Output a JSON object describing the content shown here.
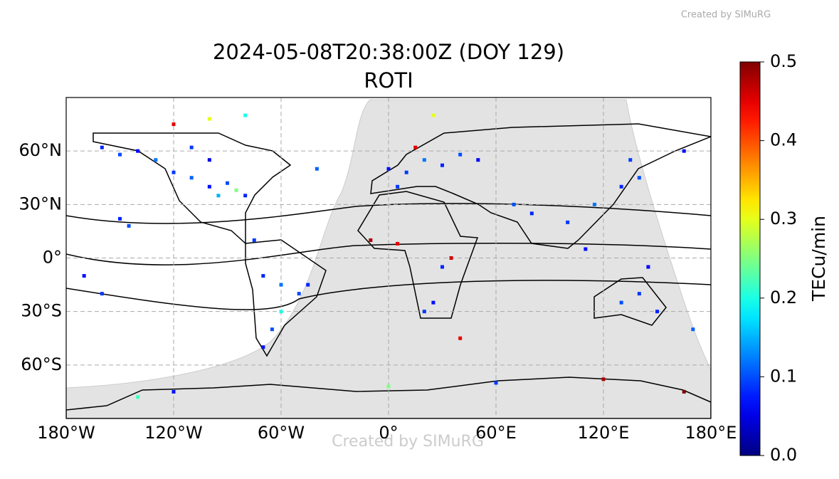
{
  "chart_data": {
    "type": "map",
    "title": "2024-05-08T20:38:00Z (DOY 129)",
    "subtitle": "ROTI",
    "watermark_top": "Created by SIMuRG",
    "watermark_center": "Created by SIMuRG",
    "xlim": [
      -180,
      180
    ],
    "ylim": [
      -90,
      90
    ],
    "xticks": [
      {
        "value": -180,
        "label": "180°W"
      },
      {
        "value": -120,
        "label": "120°W"
      },
      {
        "value": -60,
        "label": "60°W"
      },
      {
        "value": 0,
        "label": "0°"
      },
      {
        "value": 60,
        "label": "60°E"
      },
      {
        "value": 120,
        "label": "120°E"
      },
      {
        "value": 180,
        "label": "180°E"
      }
    ],
    "yticks": [
      {
        "value": 60,
        "label": "60°N"
      },
      {
        "value": 30,
        "label": "30°N"
      },
      {
        "value": 0,
        "label": "0°"
      },
      {
        "value": -30,
        "label": "30°S"
      },
      {
        "value": -60,
        "label": "60°S"
      }
    ],
    "grid": true,
    "colormap": "jet",
    "colorbar": {
      "label": "TECu/min",
      "lim": [
        0,
        0.5
      ],
      "ticks": [
        {
          "value": 0,
          "label": "0.0"
        },
        0.1,
        0.2,
        0.3,
        0.4,
        0.5
      ]
    },
    "points": [
      [
        -160,
        62,
        0.08
      ],
      [
        -150,
        58,
        0.1
      ],
      [
        -140,
        60,
        0.06
      ],
      [
        -130,
        55,
        0.12
      ],
      [
        -120,
        48,
        0.09
      ],
      [
        -110,
        45,
        0.11
      ],
      [
        -100,
        40,
        0.07
      ],
      [
        -95,
        35,
        0.15
      ],
      [
        -90,
        42,
        0.1
      ],
      [
        -85,
        38,
        0.25
      ],
      [
        -80,
        35,
        0.08
      ],
      [
        -100,
        55,
        0.05
      ],
      [
        -110,
        62,
        0.09
      ],
      [
        -120,
        75,
        0.45
      ],
      [
        -100,
        78,
        0.3
      ],
      [
        -80,
        80,
        0.2
      ],
      [
        -150,
        22,
        0.08
      ],
      [
        -145,
        18,
        0.1
      ],
      [
        -170,
        -10,
        0.07
      ],
      [
        -160,
        -20,
        0.09
      ],
      [
        -70,
        -10,
        0.08
      ],
      [
        -60,
        -15,
        0.12
      ],
      [
        -50,
        -20,
        0.1
      ],
      [
        -45,
        -15,
        0.08
      ],
      [
        -60,
        -30,
        0.2
      ],
      [
        -65,
        -40,
        0.1
      ],
      [
        -70,
        -50,
        0.07
      ],
      [
        -75,
        10,
        0.09
      ],
      [
        -40,
        50,
        0.11
      ],
      [
        0,
        50,
        0.07
      ],
      [
        10,
        48,
        0.09
      ],
      [
        20,
        55,
        0.12
      ],
      [
        30,
        52,
        0.08
      ],
      [
        40,
        58,
        0.1
      ],
      [
        50,
        55,
        0.06
      ],
      [
        15,
        62,
        0.45
      ],
      [
        25,
        80,
        0.3
      ],
      [
        5,
        40,
        0.09
      ],
      [
        -10,
        10,
        0.48
      ],
      [
        5,
        8,
        0.45
      ],
      [
        35,
        0,
        0.46
      ],
      [
        30,
        -5,
        0.08
      ],
      [
        25,
        -25,
        0.07
      ],
      [
        20,
        -30,
        0.09
      ],
      [
        70,
        30,
        0.1
      ],
      [
        80,
        25,
        0.08
      ],
      [
        100,
        20,
        0.09
      ],
      [
        110,
        5,
        0.07
      ],
      [
        115,
        30,
        0.12
      ],
      [
        130,
        40,
        0.08
      ],
      [
        140,
        45,
        0.1
      ],
      [
        135,
        55,
        0.09
      ],
      [
        165,
        60,
        0.07
      ],
      [
        140,
        -20,
        0.09
      ],
      [
        130,
        -25,
        0.1
      ],
      [
        150,
        -30,
        0.08
      ],
      [
        170,
        -40,
        0.11
      ],
      [
        145,
        -5,
        0.06
      ],
      [
        -120,
        -75,
        0.07
      ],
      [
        0,
        -72,
        0.25
      ],
      [
        60,
        -70,
        0.09
      ],
      [
        120,
        -68,
        0.48
      ],
      [
        165,
        -75,
        0.5
      ],
      [
        -140,
        -78,
        0.22
      ],
      [
        40,
        -45,
        0.45
      ]
    ]
  }
}
